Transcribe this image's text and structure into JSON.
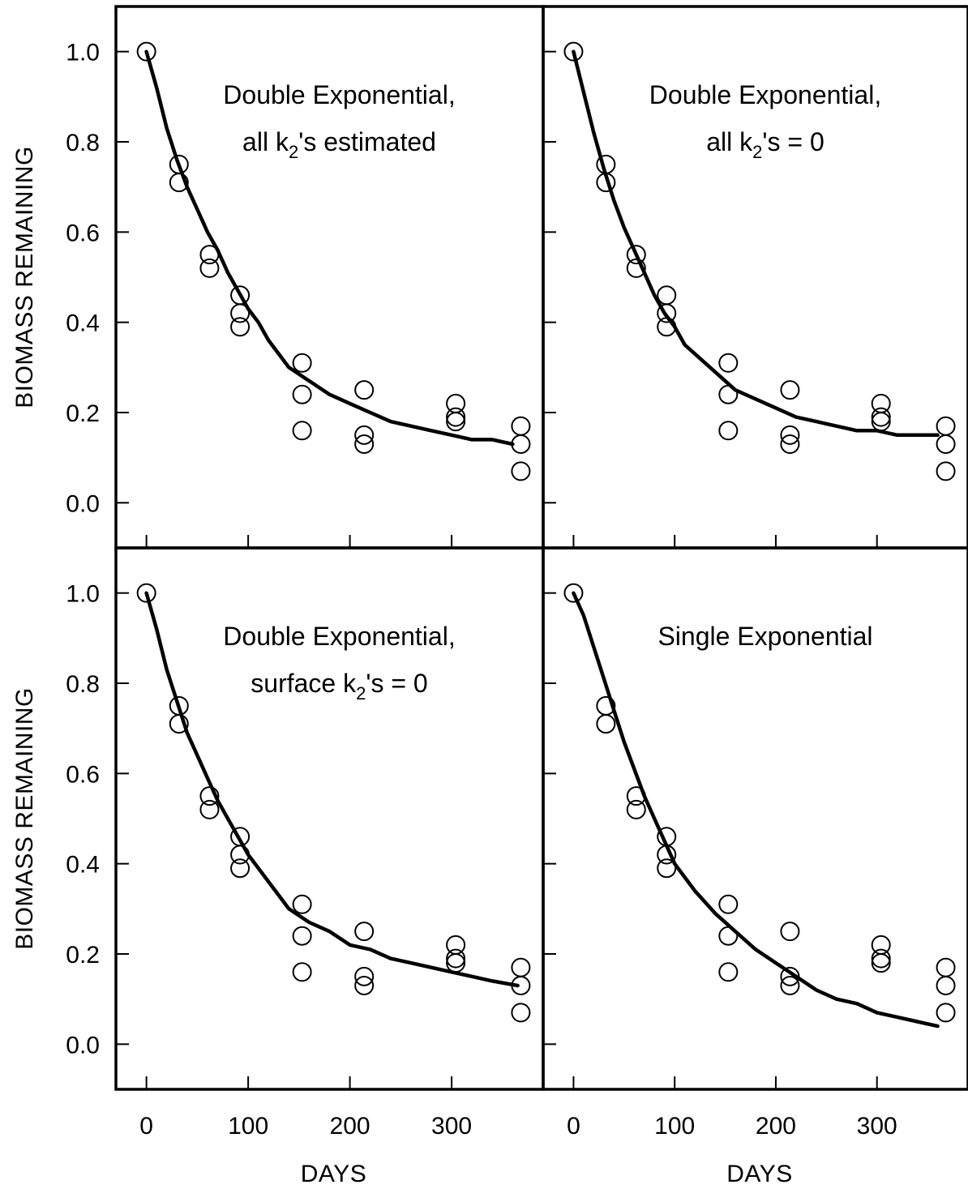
{
  "colors": {
    "line": "#000000",
    "marker_fill": "#ffffff",
    "background": "#ffffff"
  },
  "y_axis_label": "BIOMASS REMAINING",
  "x_axis_label": "DAYS",
  "chart_data": [
    {
      "type": "scatter",
      "position": "top-left",
      "title_lines": [
        {
          "pre": "Double Exponential,",
          "sub": "",
          "post": ""
        },
        {
          "pre": "all k",
          "sub": "2",
          "post": "'s estimated"
        }
      ],
      "xlabel": "",
      "ylabel": "BIOMASS REMAINING",
      "xlim": [
        -30,
        390
      ],
      "ylim": [
        -0.1,
        1.1
      ],
      "x_ticks": [
        0,
        100,
        200,
        300
      ],
      "y_ticks": [
        0.0,
        0.2,
        0.4,
        0.6,
        0.8,
        1.0
      ],
      "x_tick_labels": [],
      "y_tick_labels": [
        "0.0",
        "0.2",
        "0.4",
        "0.6",
        "0.8",
        "1.0"
      ],
      "grid": false,
      "points": [
        [
          0,
          1.0
        ],
        [
          32,
          0.75
        ],
        [
          32,
          0.71
        ],
        [
          62,
          0.55
        ],
        [
          62,
          0.52
        ],
        [
          92,
          0.46
        ],
        [
          92,
          0.42
        ],
        [
          92,
          0.39
        ],
        [
          153,
          0.31
        ],
        [
          153,
          0.24
        ],
        [
          153,
          0.16
        ],
        [
          214,
          0.25
        ],
        [
          214,
          0.13
        ],
        [
          214,
          0.15
        ],
        [
          304,
          0.22
        ],
        [
          304,
          0.18
        ],
        [
          304,
          0.19
        ],
        [
          368,
          0.17
        ],
        [
          368,
          0.13
        ],
        [
          368,
          0.07
        ]
      ],
      "fit": [
        [
          0,
          1.0
        ],
        [
          10,
          0.92
        ],
        [
          20,
          0.83
        ],
        [
          30,
          0.76
        ],
        [
          40,
          0.7
        ],
        [
          50,
          0.65
        ],
        [
          60,
          0.6
        ],
        [
          70,
          0.56
        ],
        [
          80,
          0.51
        ],
        [
          90,
          0.47
        ],
        [
          100,
          0.43
        ],
        [
          110,
          0.4
        ],
        [
          120,
          0.36
        ],
        [
          130,
          0.33
        ],
        [
          140,
          0.3
        ],
        [
          160,
          0.27
        ],
        [
          180,
          0.24
        ],
        [
          200,
          0.22
        ],
        [
          220,
          0.2
        ],
        [
          240,
          0.18
        ],
        [
          260,
          0.17
        ],
        [
          280,
          0.16
        ],
        [
          300,
          0.15
        ],
        [
          320,
          0.14
        ],
        [
          340,
          0.14
        ],
        [
          360,
          0.13
        ]
      ]
    },
    {
      "type": "scatter",
      "position": "top-right",
      "title_lines": [
        {
          "pre": "Double Exponential,",
          "sub": "",
          "post": ""
        },
        {
          "pre": "all k",
          "sub": "2",
          "post": "'s = 0"
        }
      ],
      "xlabel": "",
      "ylabel": "",
      "xlim": [
        -30,
        390
      ],
      "ylim": [
        -0.1,
        1.1
      ],
      "x_ticks": [
        0,
        100,
        200,
        300
      ],
      "y_ticks": [
        0.0,
        0.2,
        0.4,
        0.6,
        0.8,
        1.0
      ],
      "x_tick_labels": [],
      "y_tick_labels": [],
      "grid": false,
      "points": [
        [
          0,
          1.0
        ],
        [
          32,
          0.75
        ],
        [
          32,
          0.71
        ],
        [
          62,
          0.55
        ],
        [
          62,
          0.52
        ],
        [
          92,
          0.46
        ],
        [
          92,
          0.42
        ],
        [
          92,
          0.39
        ],
        [
          153,
          0.31
        ],
        [
          153,
          0.24
        ],
        [
          153,
          0.16
        ],
        [
          214,
          0.25
        ],
        [
          214,
          0.13
        ],
        [
          214,
          0.15
        ],
        [
          304,
          0.22
        ],
        [
          304,
          0.18
        ],
        [
          304,
          0.19
        ],
        [
          368,
          0.17
        ],
        [
          368,
          0.13
        ],
        [
          368,
          0.07
        ]
      ],
      "fit": [
        [
          0,
          1.0
        ],
        [
          10,
          0.91
        ],
        [
          20,
          0.82
        ],
        [
          30,
          0.74
        ],
        [
          40,
          0.67
        ],
        [
          50,
          0.61
        ],
        [
          60,
          0.56
        ],
        [
          70,
          0.51
        ],
        [
          80,
          0.46
        ],
        [
          90,
          0.42
        ],
        [
          100,
          0.39
        ],
        [
          110,
          0.35
        ],
        [
          120,
          0.33
        ],
        [
          140,
          0.29
        ],
        [
          160,
          0.25
        ],
        [
          180,
          0.23
        ],
        [
          200,
          0.21
        ],
        [
          220,
          0.19
        ],
        [
          240,
          0.18
        ],
        [
          260,
          0.17
        ],
        [
          280,
          0.16
        ],
        [
          300,
          0.16
        ],
        [
          320,
          0.15
        ],
        [
          340,
          0.15
        ],
        [
          360,
          0.15
        ]
      ]
    },
    {
      "type": "scatter",
      "position": "bottom-left",
      "title_lines": [
        {
          "pre": "Double Exponential,",
          "sub": "",
          "post": ""
        },
        {
          "pre": "surface k",
          "sub": "2",
          "post": "'s = 0"
        }
      ],
      "xlabel": "DAYS",
      "ylabel": "BIOMASS REMAINING",
      "xlim": [
        -30,
        390
      ],
      "ylim": [
        -0.1,
        1.1
      ],
      "x_ticks": [
        0,
        100,
        200,
        300
      ],
      "y_ticks": [
        0.0,
        0.2,
        0.4,
        0.6,
        0.8,
        1.0
      ],
      "x_tick_labels": [
        "0",
        "100",
        "200",
        "300"
      ],
      "y_tick_labels": [
        "0.0",
        "0.2",
        "0.4",
        "0.6",
        "0.8",
        "1.0"
      ],
      "grid": false,
      "points": [
        [
          0,
          1.0
        ],
        [
          32,
          0.75
        ],
        [
          32,
          0.71
        ],
        [
          62,
          0.55
        ],
        [
          62,
          0.52
        ],
        [
          92,
          0.46
        ],
        [
          92,
          0.42
        ],
        [
          92,
          0.39
        ],
        [
          153,
          0.31
        ],
        [
          153,
          0.24
        ],
        [
          153,
          0.16
        ],
        [
          214,
          0.25
        ],
        [
          214,
          0.13
        ],
        [
          214,
          0.15
        ],
        [
          304,
          0.22
        ],
        [
          304,
          0.18
        ],
        [
          304,
          0.19
        ],
        [
          368,
          0.17
        ],
        [
          368,
          0.13
        ],
        [
          368,
          0.07
        ]
      ],
      "fit": [
        [
          0,
          1.0
        ],
        [
          10,
          0.92
        ],
        [
          20,
          0.83
        ],
        [
          30,
          0.76
        ],
        [
          40,
          0.69
        ],
        [
          50,
          0.64
        ],
        [
          60,
          0.59
        ],
        [
          70,
          0.54
        ],
        [
          80,
          0.5
        ],
        [
          90,
          0.46
        ],
        [
          100,
          0.42
        ],
        [
          110,
          0.39
        ],
        [
          120,
          0.36
        ],
        [
          130,
          0.33
        ],
        [
          140,
          0.3
        ],
        [
          160,
          0.27
        ],
        [
          180,
          0.25
        ],
        [
          200,
          0.22
        ],
        [
          220,
          0.21
        ],
        [
          240,
          0.19
        ],
        [
          260,
          0.18
        ],
        [
          280,
          0.17
        ],
        [
          300,
          0.16
        ],
        [
          320,
          0.15
        ],
        [
          340,
          0.14
        ],
        [
          365,
          0.13
        ]
      ]
    },
    {
      "type": "scatter",
      "position": "bottom-right",
      "title_lines": [
        {
          "pre": "Single Exponential",
          "sub": "",
          "post": ""
        }
      ],
      "xlabel": "DAYS",
      "ylabel": "",
      "xlim": [
        -30,
        390
      ],
      "ylim": [
        -0.1,
        1.1
      ],
      "x_ticks": [
        0,
        100,
        200,
        300
      ],
      "y_ticks": [
        0.0,
        0.2,
        0.4,
        0.6,
        0.8,
        1.0
      ],
      "x_tick_labels": [
        "0",
        "100",
        "200",
        "300"
      ],
      "y_tick_labels": [],
      "grid": false,
      "points": [
        [
          0,
          1.0
        ],
        [
          32,
          0.75
        ],
        [
          32,
          0.71
        ],
        [
          62,
          0.55
        ],
        [
          62,
          0.52
        ],
        [
          92,
          0.46
        ],
        [
          92,
          0.42
        ],
        [
          92,
          0.39
        ],
        [
          153,
          0.31
        ],
        [
          153,
          0.24
        ],
        [
          153,
          0.16
        ],
        [
          214,
          0.25
        ],
        [
          214,
          0.13
        ],
        [
          214,
          0.15
        ],
        [
          304,
          0.22
        ],
        [
          304,
          0.18
        ],
        [
          304,
          0.19
        ],
        [
          368,
          0.17
        ],
        [
          368,
          0.13
        ],
        [
          368,
          0.07
        ]
      ],
      "fit": [
        [
          0,
          1.0
        ],
        [
          10,
          0.95
        ],
        [
          20,
          0.88
        ],
        [
          30,
          0.81
        ],
        [
          40,
          0.74
        ],
        [
          50,
          0.67
        ],
        [
          60,
          0.61
        ],
        [
          70,
          0.55
        ],
        [
          80,
          0.5
        ],
        [
          90,
          0.45
        ],
        [
          100,
          0.4
        ],
        [
          120,
          0.34
        ],
        [
          140,
          0.29
        ],
        [
          160,
          0.25
        ],
        [
          180,
          0.21
        ],
        [
          200,
          0.18
        ],
        [
          220,
          0.15
        ],
        [
          240,
          0.12
        ],
        [
          260,
          0.1
        ],
        [
          280,
          0.09
        ],
        [
          300,
          0.07
        ],
        [
          320,
          0.06
        ],
        [
          340,
          0.05
        ],
        [
          360,
          0.04
        ]
      ]
    }
  ]
}
